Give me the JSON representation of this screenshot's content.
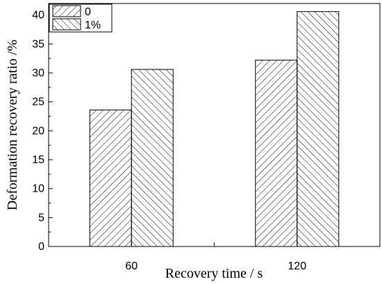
{
  "chart_data": {
    "type": "bar",
    "categories": [
      "60",
      "120"
    ],
    "series": [
      {
        "name": "0",
        "values": [
          23.6,
          32.2
        ],
        "hatch": "forward"
      },
      {
        "name": "1%",
        "values": [
          30.6,
          40.6
        ],
        "hatch": "backward"
      }
    ],
    "title": "",
    "xlabel": "Recovery time / s",
    "ylabel": "Deformation recovery ratio /%",
    "ylim": [
      0,
      42
    ],
    "yticks": [
      0,
      5,
      10,
      15,
      20,
      25,
      30,
      35,
      40
    ],
    "grid": false,
    "legend_position": "top-left",
    "colors": {
      "stroke": "#000000",
      "fill": "#ffffff"
    }
  }
}
